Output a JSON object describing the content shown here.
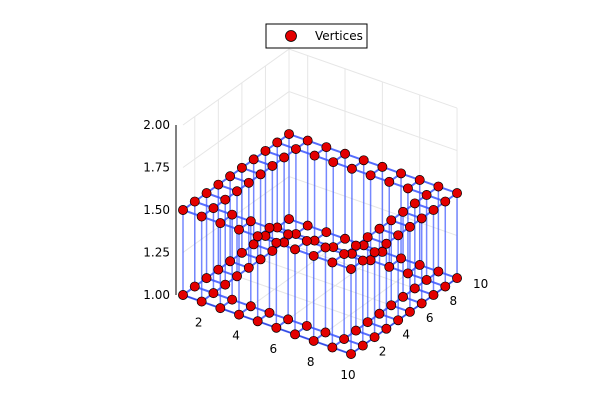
{
  "chart_data": {
    "type": "scatter",
    "title": "",
    "xlabel": "",
    "ylabel": "",
    "zlabel": "",
    "xlim": [
      1,
      10
    ],
    "ylim": [
      1,
      10
    ],
    "zlim": [
      1,
      2
    ],
    "x_ticks": [
      2,
      4,
      6,
      8,
      10
    ],
    "y_ticks": [
      2,
      4,
      6,
      8,
      10
    ],
    "z_ticks": [
      1.0,
      1.25,
      1.5,
      1.75,
      2.0
    ],
    "z_tick_labels": [
      "1.00",
      "1.25",
      "1.50",
      "1.75",
      "2.00"
    ],
    "grid": true,
    "legend": {
      "position": "top",
      "entries": [
        "Vertices"
      ]
    },
    "description_of_structure": "Square ring lattice of vertices on two levels joined by edges",
    "series": [
      {
        "name": "Vertices",
        "marker_color": "#e30000",
        "marker_edge_color": "#000000",
        "edge_color": "#3a55ff",
        "layers": [
          1.0,
          1.5
        ],
        "ring_outer": [
          1,
          10
        ],
        "ring_inner": [
          2,
          9
        ]
      }
    ]
  }
}
